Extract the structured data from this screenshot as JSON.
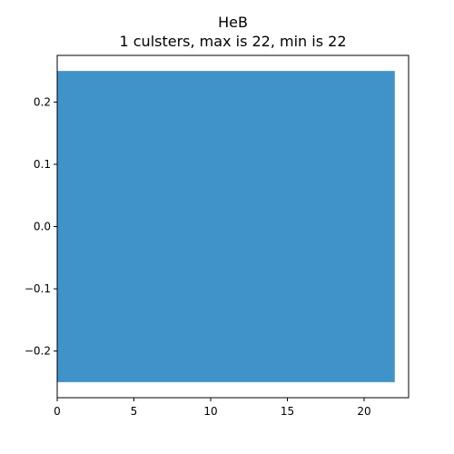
{
  "chart_data": {
    "type": "bar",
    "orientation": "horizontal",
    "title": "HeB",
    "subtitle": "1 culsters, max is 22, min is 22",
    "xlabel": "",
    "ylabel": "",
    "bars": [
      {
        "y": 0,
        "value": 22,
        "height": 0.5
      }
    ],
    "xlim": [
      0,
      22.9
    ],
    "ylim": [
      -0.275,
      0.275
    ],
    "xticks": [
      0,
      5,
      10,
      15,
      20
    ],
    "xtick_labels": [
      "0",
      "5",
      "10",
      "15",
      "20"
    ],
    "yticks": [
      0.2,
      0.1,
      0.0,
      -0.1,
      -0.2
    ],
    "ytick_labels": [
      "0.2",
      "0.1",
      "0.0",
      "−0.1",
      "−0.2"
    ],
    "bar_color": "#3f93c9",
    "grid": false,
    "legend": "none"
  }
}
